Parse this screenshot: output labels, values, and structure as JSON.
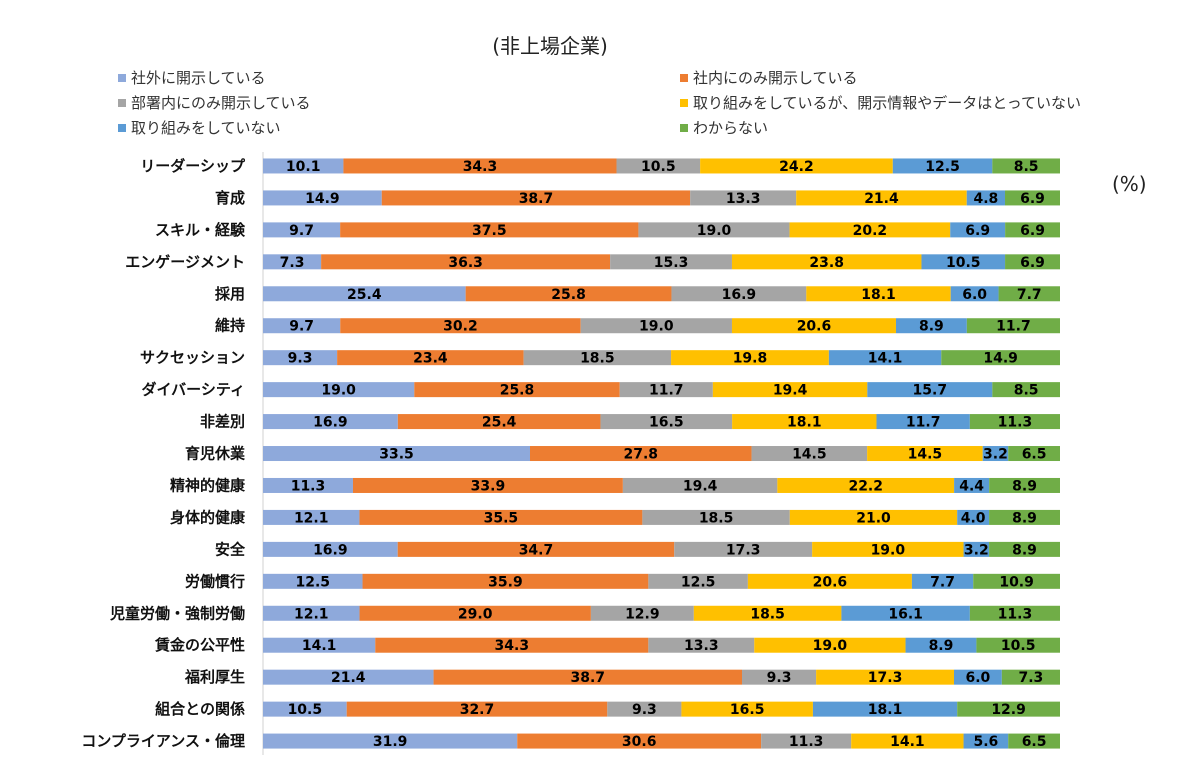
{
  "chart_data": {
    "type": "bar",
    "orientation": "horizontal",
    "stacked": true,
    "title": "(非上場企業)",
    "unit": "(%)",
    "legend_position": "top",
    "categories": [
      "リーダーシップ",
      "育成",
      "スキル・経験",
      "エンゲージメント",
      "採用",
      "維持",
      "サクセッション",
      "ダイバーシティ",
      "非差別",
      "育児休業",
      "精神的健康",
      "身体的健康",
      "安全",
      "労働慣行",
      "児童労働・強制労働",
      "賃金の公平性",
      "福利厚生",
      "組合との関係",
      "コンプライアンス・倫理"
    ],
    "series": [
      {
        "name": "社外に開示している",
        "color": "#8ea9db",
        "values": [
          10.1,
          14.9,
          9.7,
          7.3,
          25.4,
          9.7,
          9.3,
          19.0,
          16.9,
          33.5,
          11.3,
          12.1,
          16.9,
          12.5,
          12.1,
          14.1,
          21.4,
          10.5,
          31.9
        ]
      },
      {
        "name": "社内にのみ開示している",
        "color": "#ed7d31",
        "values": [
          34.3,
          38.7,
          37.5,
          36.3,
          25.8,
          30.2,
          23.4,
          25.8,
          25.4,
          27.8,
          33.9,
          35.5,
          34.7,
          35.9,
          29.0,
          34.3,
          38.7,
          32.7,
          30.6
        ]
      },
      {
        "name": "部署内にのみ開示している",
        "color": "#a5a5a5",
        "values": [
          10.5,
          13.3,
          19.0,
          15.3,
          16.9,
          19.0,
          18.5,
          11.7,
          16.5,
          14.5,
          19.4,
          18.5,
          17.3,
          12.5,
          12.9,
          13.3,
          9.3,
          9.3,
          11.3
        ]
      },
      {
        "name": "取り組みをしているが、開示情報やデータはとっていない",
        "color": "#ffc000",
        "values": [
          24.2,
          21.4,
          20.2,
          23.8,
          18.1,
          20.6,
          19.8,
          19.4,
          18.1,
          14.5,
          22.2,
          21.0,
          19.0,
          20.6,
          18.5,
          19.0,
          17.3,
          16.5,
          14.1
        ]
      },
      {
        "name": "取り組みをしていない",
        "color": "#5b9bd5",
        "values": [
          12.5,
          4.8,
          6.9,
          10.5,
          6.0,
          8.9,
          14.1,
          15.7,
          11.7,
          3.2,
          4.4,
          4.0,
          3.2,
          7.7,
          16.1,
          8.9,
          6.0,
          18.1,
          5.6
        ]
      },
      {
        "name": "わからない",
        "color": "#70ad47",
        "values": [
          8.5,
          6.9,
          6.9,
          6.9,
          7.7,
          11.7,
          14.9,
          8.5,
          11.3,
          6.5,
          8.9,
          8.9,
          8.9,
          10.9,
          11.3,
          10.5,
          7.3,
          12.9,
          6.5
        ]
      }
    ]
  }
}
